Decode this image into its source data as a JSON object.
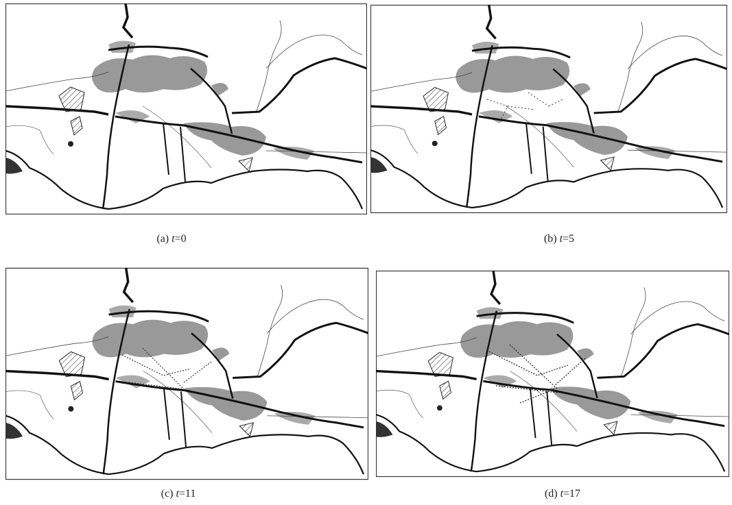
{
  "panels": [
    {
      "label": "(a)",
      "variable": "t",
      "value": "=0"
    },
    {
      "label": "(b)",
      "variable": "t",
      "value": "=5"
    },
    {
      "label": "(c)",
      "variable": "t",
      "value": "=11"
    },
    {
      "label": "(d)",
      "variable": "t",
      "value": "=17"
    }
  ]
}
